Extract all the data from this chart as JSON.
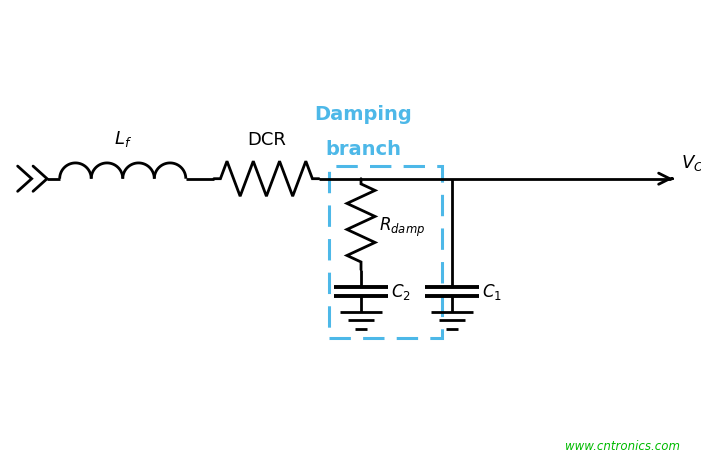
{
  "bg_color": "#ffffff",
  "line_color": "#000000",
  "damp_box_color": "#4db8e8",
  "watermark_color": "#00bb00",
  "title_line1": "Damping",
  "title_line2": "branch",
  "title_color": "#4db8e8",
  "watermark": "www.cntronics.com",
  "fig_width": 7.01,
  "fig_height": 4.66,
  "dpi": 100
}
